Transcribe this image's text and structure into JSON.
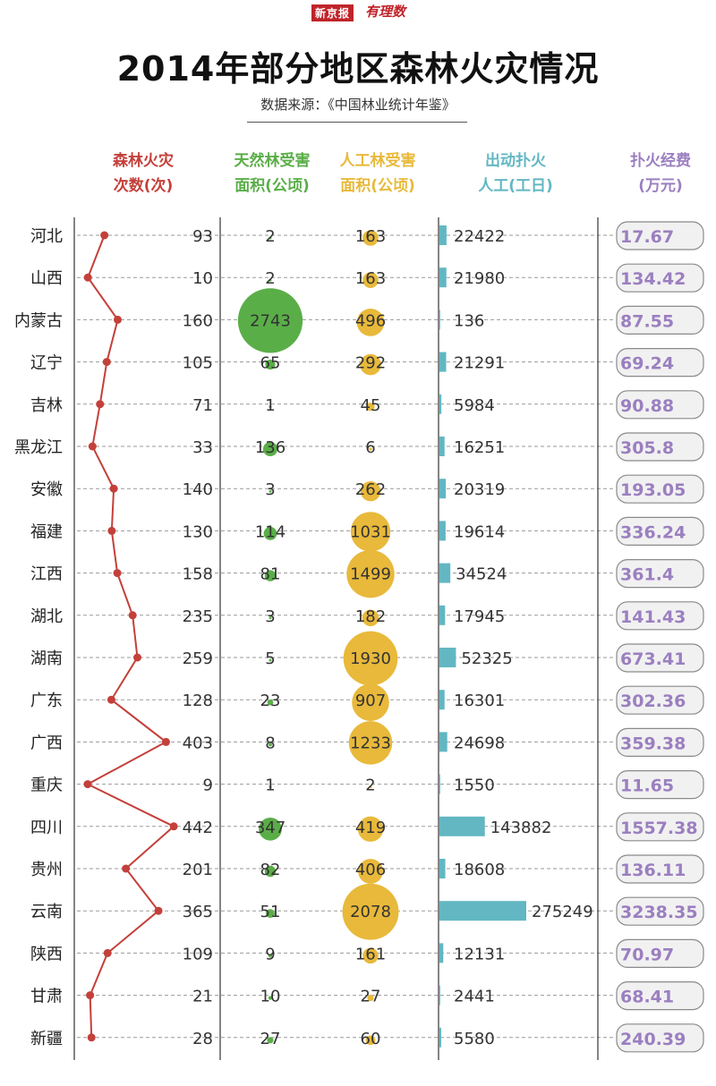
{
  "header": {
    "logo_box": "新京报",
    "logo_text": "有理数",
    "title": "2014年部分地区森林火灾情况",
    "source": "数据来源：《中国林业统计年鉴》"
  },
  "columns": [
    {
      "key": "fires",
      "line1": "森林火灾",
      "line2": "次数(次)",
      "color": "#c4403a"
    },
    {
      "key": "natural",
      "line1": "天然林受害",
      "line2": "面积(公顷)",
      "color": "#5aae48"
    },
    {
      "key": "planted",
      "line1": "人工林受害",
      "line2": "面积(公顷)",
      "color": "#e8b93a"
    },
    {
      "key": "labor",
      "line1": "出动扑火",
      "line2": "人工(工日)",
      "color": "#62b7c2"
    },
    {
      "key": "cost",
      "line1": "扑火经费",
      "line2": "(万元)",
      "color": "#9b7fc0"
    }
  ],
  "chart_data": {
    "type": "table",
    "title": "2014年部分地区森林火灾情况",
    "regions": [
      "河北",
      "山西",
      "内蒙古",
      "辽宁",
      "吉林",
      "黑龙江",
      "安徽",
      "福建",
      "江西",
      "湖北",
      "湖南",
      "广东",
      "广西",
      "重庆",
      "四川",
      "贵州",
      "云南",
      "陕西",
      "甘肃",
      "新疆"
    ],
    "series": [
      {
        "name": "森林火灾次数(次)",
        "chart": "line",
        "values": [
          93,
          10,
          160,
          105,
          71,
          33,
          140,
          130,
          158,
          235,
          259,
          128,
          403,
          9,
          442,
          201,
          365,
          109,
          21,
          28
        ]
      },
      {
        "name": "天然林受害面积(公顷)",
        "chart": "bubble",
        "values": [
          2,
          2,
          2743,
          65,
          1,
          136,
          3,
          114,
          81,
          3,
          5,
          23,
          8,
          1,
          347,
          82,
          51,
          9,
          10,
          27
        ]
      },
      {
        "name": "人工林受害面积(公顷)",
        "chart": "bubble",
        "values": [
          163,
          163,
          496,
          292,
          45,
          6,
          262,
          1031,
          1499,
          182,
          1930,
          907,
          1233,
          2,
          419,
          406,
          2078,
          161,
          27,
          60
        ]
      },
      {
        "name": "出动扑火人工(工日)",
        "chart": "bar",
        "values": [
          22422,
          21980,
          136,
          21291,
          5984,
          16251,
          20319,
          19614,
          34524,
          17945,
          52325,
          16301,
          24698,
          1550,
          143882,
          18608,
          275249,
          12131,
          2441,
          5580
        ]
      },
      {
        "name": "扑火经费(万元)",
        "chart": "label",
        "values": [
          "17.67",
          "134.42",
          "87.55",
          "69.24",
          "90.88",
          "305.8",
          "193.05",
          "336.24",
          "361.4",
          "141.43",
          "673.41",
          "302.36",
          "359.38",
          "11.65",
          "1557.38",
          "136.11",
          "3238.35",
          "70.97",
          "68.41",
          "240.39"
        ]
      }
    ]
  }
}
